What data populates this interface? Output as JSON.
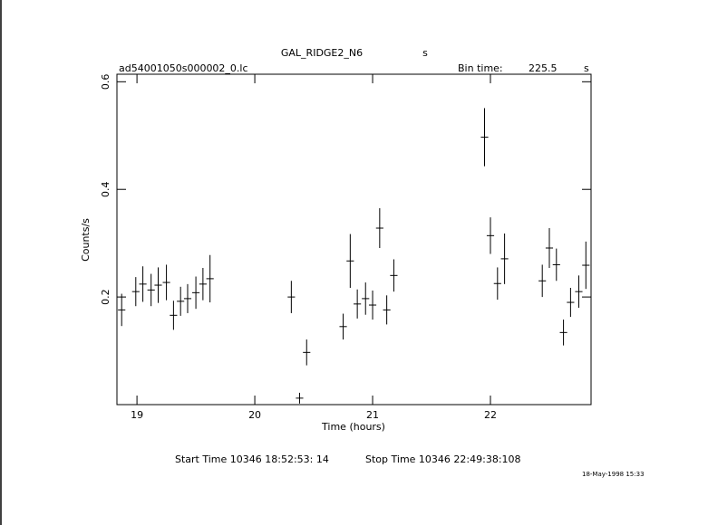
{
  "chart_data": {
    "type": "errorbar",
    "title": "GAL_RIDGE2_N6",
    "title_unit": "s",
    "file_name": "ad54001050s000002_0.lc",
    "bin_time_label": "Bin time:",
    "bin_time": 225.5,
    "bin_time_unit": "s",
    "xlabel": "Time (hours)",
    "ylabel": "Counts/s",
    "start_time": "Start Time 10346 18:52:53: 14",
    "stop_time": "Stop Time 10346 22:49:38:108",
    "timestamp": "18-May-1998 15:33",
    "x": [
      18.87,
      18.99,
      19.05,
      19.12,
      19.18,
      19.25,
      19.31,
      19.37,
      19.43,
      19.5,
      19.56,
      19.62,
      20.31,
      20.38,
      20.44,
      20.75,
      20.81,
      20.87,
      20.94,
      21.0,
      21.06,
      21.12,
      21.18,
      21.95,
      22.0,
      22.06,
      22.12,
      22.44,
      22.5,
      22.56,
      22.62,
      22.68,
      22.75,
      22.81
    ],
    "values": [
      0.176,
      0.21,
      0.224,
      0.213,
      0.222,
      0.227,
      0.166,
      0.192,
      0.197,
      0.208,
      0.224,
      0.234,
      0.2,
      0.012,
      0.097,
      0.145,
      0.267,
      0.187,
      0.197,
      0.185,
      0.328,
      0.176,
      0.24,
      0.497,
      0.314,
      0.225,
      0.271,
      0.23,
      0.291,
      0.26,
      0.134,
      0.19,
      0.21,
      0.259
    ],
    "errors": [
      0.03,
      0.027,
      0.033,
      0.03,
      0.033,
      0.033,
      0.027,
      0.027,
      0.027,
      0.03,
      0.03,
      0.044,
      0.03,
      0.01,
      0.024,
      0.024,
      0.05,
      0.027,
      0.03,
      0.027,
      0.037,
      0.027,
      0.03,
      0.054,
      0.034,
      0.03,
      0.047,
      0.03,
      0.037,
      0.03,
      0.024,
      0.027,
      0.03,
      0.044
    ],
    "color": "#000000",
    "xlim": [
      18.83,
      22.854
    ],
    "ylim": [
      0,
      0.614
    ],
    "xticks": [
      19,
      20,
      21,
      22
    ],
    "yticks": [
      0.2,
      0.4,
      0.6
    ]
  }
}
